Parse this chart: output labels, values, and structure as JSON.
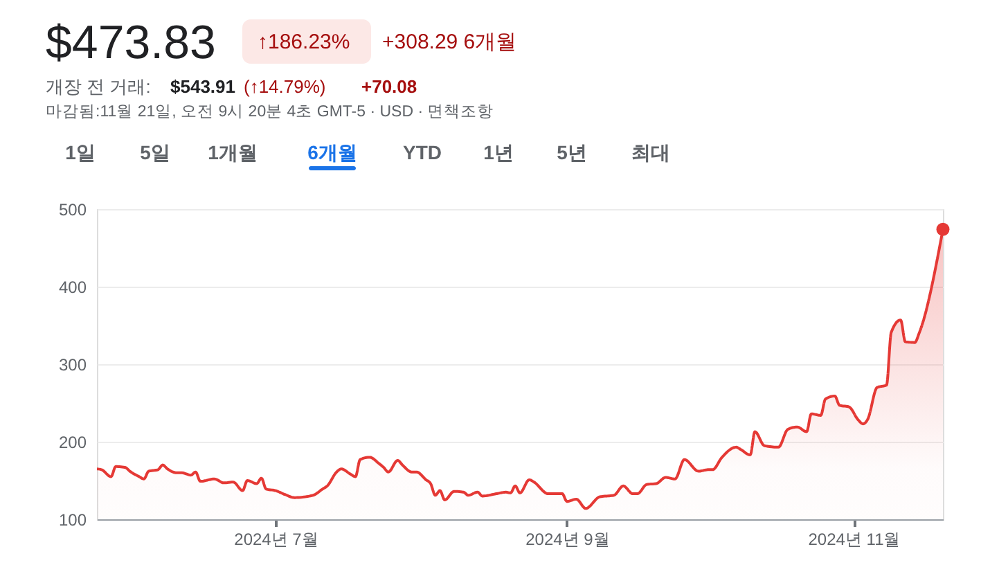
{
  "chart_data": {
    "type": "area",
    "title": "$473.83",
    "annotations": [
      "↑186.23%",
      "+308.29 6개월",
      "개장 전 거래:",
      "$543.91",
      "(↑14.79%)",
      "+70.08",
      "마감됨:11월 21일, 오전 9시 20분 4초 GMT-5 · USD · 면책조항",
      "1일",
      "5일",
      "1개월",
      "6개월",
      "YTD",
      "1년",
      "5년",
      "최대"
    ],
    "xlim": [
      "2024-05-24",
      "2024-11-20"
    ],
    "xticks": [
      {
        "value": "2024-07-01",
        "label": "2024년 7월"
      },
      {
        "value": "2024-09-01",
        "label": "2024년 9월"
      },
      {
        "value": "2024-11-01",
        "label": "2024년 11월"
      }
    ],
    "ylim": [
      100,
      500
    ],
    "yticks": [
      100,
      200,
      300,
      400,
      500
    ],
    "grid": "y",
    "legend": false,
    "series": [
      {
        "color": "#e53935",
        "marker": "none",
        "line_style": "solid",
        "x": [
          "2024-05-24",
          "2024-05-25",
          "2024-05-27",
          "2024-05-28",
          "2024-05-30",
          "2024-05-31",
          "2024-06-02",
          "2024-06-03",
          "2024-06-04",
          "2024-06-06",
          "2024-06-07",
          "2024-06-08",
          "2024-06-10",
          "2024-06-11",
          "2024-06-13",
          "2024-06-14",
          "2024-06-15",
          "2024-06-18",
          "2024-06-20",
          "2024-06-22",
          "2024-06-24",
          "2024-06-25",
          "2024-06-27",
          "2024-06-28",
          "2024-06-29",
          "2024-07-01",
          "2024-07-03",
          "2024-07-05",
          "2024-07-09",
          "2024-07-11",
          "2024-07-12",
          "2024-07-14",
          "2024-07-15",
          "2024-07-17",
          "2024-07-18",
          "2024-07-19",
          "2024-07-21",
          "2024-07-23",
          "2024-07-24",
          "2024-07-25",
          "2024-07-27",
          "2024-07-28",
          "2024-07-30",
          "2024-07-31",
          "2024-08-02",
          "2024-08-03",
          "2024-08-04",
          "2024-08-05",
          "2024-08-06",
          "2024-08-08",
          "2024-08-10",
          "2024-08-11",
          "2024-08-13",
          "2024-08-14",
          "2024-08-17",
          "2024-08-19",
          "2024-08-20",
          "2024-08-21",
          "2024-08-22",
          "2024-08-24",
          "2024-08-25",
          "2024-08-28",
          "2024-08-31",
          "2024-09-01",
          "2024-09-03",
          "2024-09-05",
          "2024-09-08",
          "2024-09-11",
          "2024-09-13",
          "2024-09-15",
          "2024-09-16",
          "2024-09-18",
          "2024-09-20",
          "2024-09-22",
          "2024-09-24",
          "2024-09-26",
          "2024-09-29",
          "2024-10-01",
          "2024-10-02",
          "2024-10-04",
          "2024-10-07",
          "2024-10-08",
          "2024-10-10",
          "2024-10-11",
          "2024-10-13",
          "2024-10-16",
          "2024-10-18",
          "2024-10-20",
          "2024-10-22",
          "2024-10-23",
          "2024-10-25",
          "2024-10-26",
          "2024-10-28",
          "2024-10-29",
          "2024-10-31",
          "2024-11-02",
          "2024-11-03",
          "2024-11-04",
          "2024-11-06",
          "2024-11-08",
          "2024-11-09",
          "2024-11-11",
          "2024-11-12",
          "2024-11-14",
          "2024-11-15",
          "2024-11-20"
        ],
        "values": [
          165,
          164,
          155,
          168,
          167,
          162,
          155,
          152,
          162,
          164,
          170,
          165,
          160,
          160,
          157,
          161,
          149,
          152,
          147,
          148,
          137,
          150,
          146,
          153,
          139,
          137,
          132,
          128,
          131,
          139,
          143,
          161,
          165,
          158,
          155,
          177,
          180,
          172,
          167,
          161,
          176,
          170,
          161,
          161,
          151,
          146,
          131,
          137,
          125,
          136,
          135,
          131,
          135,
          130,
          133,
          135,
          134,
          143,
          134,
          151,
          148,
          133,
          133,
          123,
          126,
          114,
          129,
          131,
          143,
          133,
          133,
          145,
          146,
          154,
          152,
          177,
          162,
          164,
          164,
          180,
          193,
          190,
          183,
          213,
          195,
          193,
          216,
          219,
          213,
          236,
          234,
          255,
          259,
          247,
          245,
          228,
          223,
          229,
          270,
          273,
          341,
          357,
          329,
          328,
          341,
          473.83
        ]
      },
      {
        "type": "scatter",
        "color": "#e53935",
        "marker": "circle",
        "x": [
          "2024-11-20"
        ],
        "values": [
          473.83
        ]
      }
    ]
  }
}
